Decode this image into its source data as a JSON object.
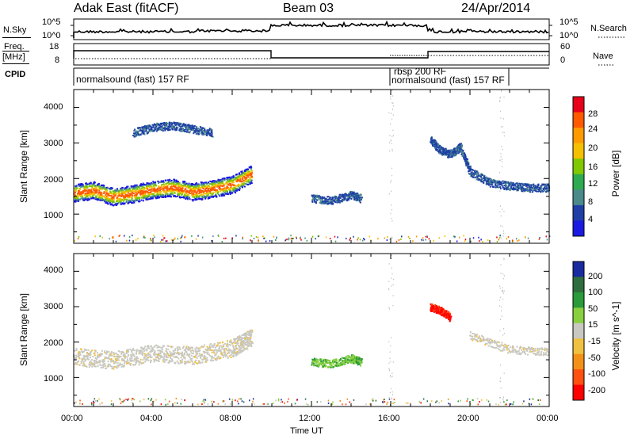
{
  "header": {
    "title_left": "Adak East (fitACF)",
    "title_center": "Beam 03",
    "title_right": "24/Apr/2014"
  },
  "panels": {
    "sky": {
      "left_label": "N.Sky",
      "left_ticks": [
        "10^5",
        "10^0"
      ],
      "right_ticks": [
        "10^5",
        "10^0"
      ],
      "right_label": "N.Search"
    },
    "freq": {
      "left_label_line1": "Freq.",
      "left_label_line2": "[MHz]",
      "left_ticks": [
        "18",
        "8"
      ],
      "right_ticks": [
        "60",
        "0"
      ],
      "right_label": "Nave"
    },
    "cpid": {
      "label": "CPID",
      "segments": [
        {
          "label": "normalsound (fast) 157 RF",
          "start_hour": 0,
          "end_hour": 16
        },
        {
          "label": "rbsp 200 RF",
          "start_hour": 16,
          "end_hour": 18
        },
        {
          "label": "normalsound (fast) 157 RF",
          "start_hour": 18,
          "end_hour": 24
        }
      ]
    }
  },
  "axes": {
    "ylabel": "Slant Range [km]",
    "yticks": [
      "4000",
      "3000",
      "2000",
      "1000"
    ],
    "xticks": [
      "00:00",
      "04:00",
      "08:00",
      "12:00",
      "16:00",
      "20:00",
      "00:00"
    ],
    "xlabel": "Time UT"
  },
  "colorbars": {
    "power": {
      "label": "Power [dB]",
      "ticks": [
        "28",
        "24",
        "20",
        "16",
        "12",
        "8",
        "4"
      ],
      "colors": [
        "#e8001a",
        "#ff5a00",
        "#ff9a00",
        "#f4c000",
        "#80c800",
        "#2eaa50",
        "#4a8a8a",
        "#1f3fa6",
        "#1a1ae0"
      ]
    },
    "velocity": {
      "label": "Velocity [m s^-1]",
      "ticks": [
        "200",
        "100",
        "50",
        "15",
        "-15",
        "-50",
        "-100",
        "-200"
      ],
      "colors": [
        "#1a2aa0",
        "#2e6e3e",
        "#2a9a3a",
        "#88d040",
        "#c8c8c0",
        "#f0c040",
        "#f39018",
        "#ff5010",
        "#ff0000"
      ]
    }
  },
  "chart_data": [
    {
      "type": "heatmap",
      "name": "Power",
      "x_range_hours": [
        0,
        24
      ],
      "ylim": [
        180,
        4500
      ],
      "series": [
        {
          "time": [
            0,
            1,
            2,
            3,
            4,
            5,
            6,
            7,
            8,
            9
          ],
          "range_km": [
            1600,
            1680,
            1500,
            1580,
            1700,
            1760,
            1640,
            1720,
            1840,
            2150
          ]
        },
        {
          "time": [
            3,
            4,
            5,
            6,
            7
          ],
          "range_km": [
            3300,
            3450,
            3500,
            3400,
            3300
          ]
        },
        {
          "time": [
            12,
            13,
            14,
            14.5
          ],
          "range_km": [
            1450,
            1400,
            1550,
            1450
          ]
        },
        {
          "time": [
            18,
            18.5,
            19,
            19.5,
            20,
            21,
            22,
            23,
            24
          ],
          "range_km": [
            3100,
            2800,
            2700,
            2900,
            2200,
            1900,
            1800,
            1750,
            1750
          ]
        }
      ]
    },
    {
      "type": "heatmap",
      "name": "Velocity",
      "x_range_hours": [
        0,
        24
      ],
      "ylim": [
        180,
        4500
      ],
      "series": [
        {
          "time": [
            0,
            2,
            4,
            6,
            8,
            9
          ],
          "range_km": [
            1600,
            1500,
            1700,
            1640,
            1840,
            2150
          ],
          "velocity_ms": [
            0,
            0,
            0,
            0,
            0,
            0
          ]
        },
        {
          "time": [
            12,
            13,
            14,
            14.5
          ],
          "range_km": [
            1450,
            1400,
            1550,
            1450
          ],
          "velocity_ms": [
            60,
            50,
            40,
            50
          ]
        },
        {
          "time": [
            18,
            18.5,
            19
          ],
          "range_km": [
            3000,
            2900,
            2700
          ],
          "velocity_ms": [
            -250,
            -250,
            -200
          ]
        },
        {
          "time": [
            20,
            22,
            24
          ],
          "range_km": [
            2200,
            1800,
            1750
          ],
          "velocity_ms": [
            0,
            0,
            0
          ]
        }
      ]
    }
  ]
}
